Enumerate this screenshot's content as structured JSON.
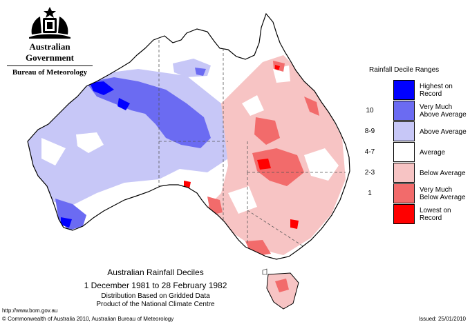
{
  "header": {
    "government": "Australian Government",
    "bureau": "Bureau of Meteorology"
  },
  "legend": {
    "title": "Rainfall Decile Ranges",
    "items": [
      {
        "range": "",
        "label": "Highest on Record",
        "color": "#0000ff"
      },
      {
        "range": "10",
        "label": "Very Much Above Average",
        "color": "#6b6bf2"
      },
      {
        "range": "8-9",
        "label": "Above Average",
        "color": "#c7c7f7"
      },
      {
        "range": "4-7",
        "label": "Average",
        "color": "#ffffff"
      },
      {
        "range": "2-3",
        "label": "Below Average",
        "color": "#f7c4c4"
      },
      {
        "range": "1",
        "label": "Very Much Below Average",
        "color": "#f26b6b"
      },
      {
        "range": "",
        "label": "Lowest on Record",
        "color": "#ff0000"
      }
    ]
  },
  "caption": {
    "title": "Australian Rainfall Deciles",
    "period": "1 December 1981 to 28 February 1982",
    "line3": "Distribution Based on Gridded Data",
    "line4": "Product of the National Climate Centre"
  },
  "footer": {
    "url": "http://www.bom.gov.au",
    "copyright": "© Commonwealth of Australia 2010, Australian Bureau of Meteorology",
    "issued": "Issued: 25/01/2010"
  }
}
